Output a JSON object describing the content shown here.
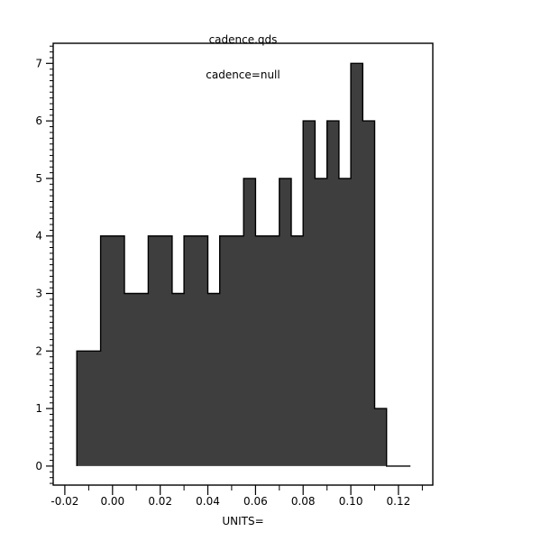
{
  "window": {
    "background": "#ffffff"
  },
  "chart_data": {
    "type": "histogram",
    "title": "cadence.qds",
    "subtitle": "cadence=null",
    "xlabel": "UNITS=",
    "ylabel": "",
    "bin_edges": [
      -0.015,
      -0.01,
      -0.005,
      0.0,
      0.005,
      0.01,
      0.015,
      0.02,
      0.025,
      0.03,
      0.035,
      0.04,
      0.045,
      0.05,
      0.055,
      0.06,
      0.065,
      0.07,
      0.075,
      0.08,
      0.085,
      0.09,
      0.095,
      0.1,
      0.105,
      0.11,
      0.115,
      0.12,
      0.125
    ],
    "counts": [
      2,
      2,
      4,
      4,
      3,
      3,
      4,
      4,
      3,
      4,
      4,
      3,
      4,
      4,
      5,
      4,
      4,
      5,
      4,
      6,
      5,
      6,
      5,
      7,
      6,
      1,
      0,
      0
    ],
    "total_samples": 106,
    "xlim": [
      -0.0249,
      0.1344
    ],
    "ylim": [
      -0.33,
      7.35
    ],
    "x_major_ticks": [
      {
        "value": -0.02,
        "label": "-0.02"
      },
      {
        "value": 0.0,
        "label": "0.00"
      },
      {
        "value": 0.02,
        "label": "0.02"
      },
      {
        "value": 0.04,
        "label": "0.04"
      },
      {
        "value": 0.06,
        "label": "0.06"
      },
      {
        "value": 0.08,
        "label": "0.08"
      },
      {
        "value": 0.1,
        "label": "0.10"
      },
      {
        "value": 0.12,
        "label": "0.12"
      }
    ],
    "x_minor_ticks": [
      -0.01,
      0.01,
      0.03,
      0.05,
      0.07,
      0.09,
      0.11,
      0.13
    ],
    "y_major_ticks": [
      {
        "value": 0,
        "label": "0"
      },
      {
        "value": 1,
        "label": "1"
      },
      {
        "value": 2,
        "label": "2"
      },
      {
        "value": 3,
        "label": "3"
      },
      {
        "value": 4,
        "label": "4"
      },
      {
        "value": 5,
        "label": "5"
      },
      {
        "value": 6,
        "label": "6"
      },
      {
        "value": 7,
        "label": "7"
      }
    ],
    "y_minor_tick_step": 0.1,
    "grid": false,
    "legend": null,
    "colors": {
      "bar_fill": "#3e3e3e",
      "bar_stroke": "#000000",
      "axis": "#000000",
      "text": "#000000",
      "background": "#ffffff"
    }
  }
}
